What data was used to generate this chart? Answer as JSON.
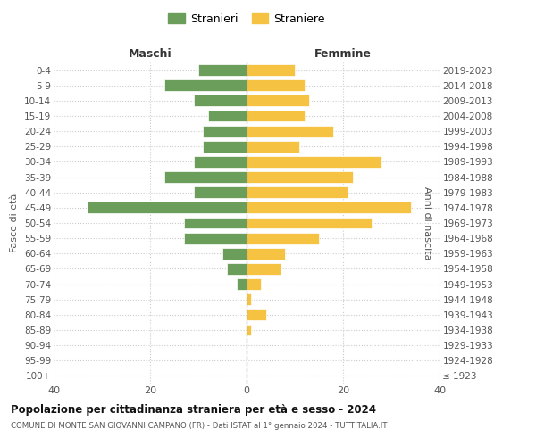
{
  "age_groups": [
    "100+",
    "95-99",
    "90-94",
    "85-89",
    "80-84",
    "75-79",
    "70-74",
    "65-69",
    "60-64",
    "55-59",
    "50-54",
    "45-49",
    "40-44",
    "35-39",
    "30-34",
    "25-29",
    "20-24",
    "15-19",
    "10-14",
    "5-9",
    "0-4"
  ],
  "birth_years": [
    "≤ 1923",
    "1924-1928",
    "1929-1933",
    "1934-1938",
    "1939-1943",
    "1944-1948",
    "1949-1953",
    "1954-1958",
    "1959-1963",
    "1964-1968",
    "1969-1973",
    "1974-1978",
    "1979-1983",
    "1984-1988",
    "1989-1993",
    "1994-1998",
    "1999-2003",
    "2004-2008",
    "2009-2013",
    "2014-2018",
    "2019-2023"
  ],
  "maschi": [
    0,
    0,
    0,
    0,
    0,
    0,
    2,
    4,
    5,
    13,
    13,
    33,
    11,
    17,
    11,
    9,
    9,
    8,
    11,
    17,
    10
  ],
  "femmine": [
    0,
    0,
    0,
    1,
    4,
    1,
    3,
    7,
    8,
    15,
    26,
    34,
    21,
    22,
    28,
    11,
    18,
    12,
    13,
    12,
    10
  ],
  "color_maschi": "#6a9e5a",
  "color_femmine": "#f5c242",
  "title": "Popolazione per cittadinanza straniera per età e sesso - 2024",
  "subtitle": "COMUNE DI MONTE SAN GIOVANNI CAMPANO (FR) - Dati ISTAT al 1° gennaio 2024 - TUTTITALIA.IT",
  "xlabel_left": "Maschi",
  "xlabel_right": "Femmine",
  "ylabel_left": "Fasce di età",
  "ylabel_right": "Anni di nascita",
  "legend_maschi": "Stranieri",
  "legend_femmine": "Straniere",
  "xlim": 40,
  "background_color": "#ffffff",
  "grid_color": "#cccccc"
}
